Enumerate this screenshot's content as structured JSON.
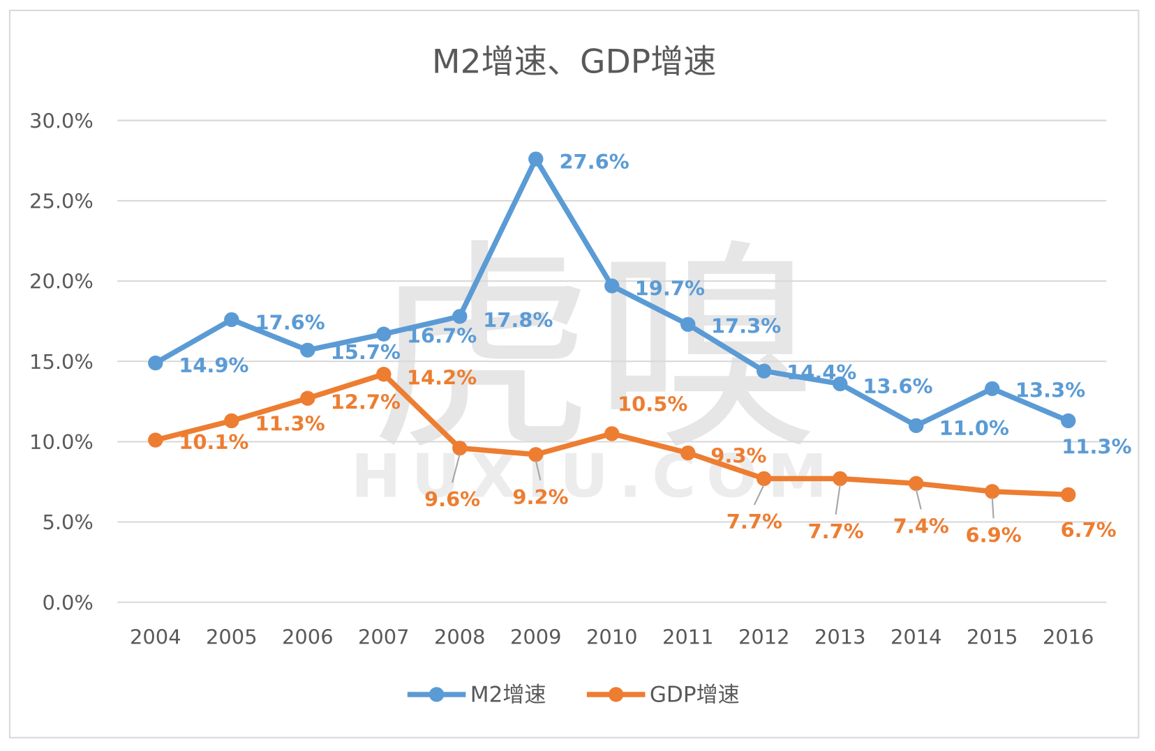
{
  "chart_data": {
    "type": "line",
    "title": "M2增速、GDP增速",
    "categories": [
      "2004",
      "2005",
      "2006",
      "2007",
      "2008",
      "2009",
      "2010",
      "2011",
      "2012",
      "2013",
      "2014",
      "2015",
      "2016"
    ],
    "ylim": [
      0,
      30
    ],
    "yticks": [
      "0.0%",
      "5.0%",
      "10.0%",
      "15.0%",
      "20.0%",
      "25.0%",
      "30.0%"
    ],
    "grid": true,
    "legend_placement": "bottom",
    "series": [
      {
        "name": "M2增速",
        "color": "#5B9BD5",
        "values": [
          14.9,
          17.6,
          15.7,
          16.7,
          17.8,
          27.6,
          19.7,
          17.3,
          14.4,
          13.6,
          11.0,
          13.3,
          11.3
        ],
        "labels": [
          "14.9%",
          "17.6%",
          "15.7%",
          "16.7%",
          "17.8%",
          "27.6%",
          "19.7%",
          "17.3%",
          "14.4%",
          "13.6%",
          "11.0%",
          "13.3%",
          "11.3%"
        ]
      },
      {
        "name": "GDP增速",
        "color": "#ED7D31",
        "values": [
          10.1,
          11.3,
          12.7,
          14.2,
          9.6,
          9.2,
          10.5,
          9.3,
          7.7,
          7.7,
          7.4,
          6.9,
          6.7
        ],
        "labels": [
          "10.1%",
          "11.3%",
          "12.7%",
          "14.2%",
          "9.6%",
          "9.2%",
          "10.5%",
          "9.3%",
          "7.7%",
          "7.7%",
          "7.4%",
          "6.9%",
          "6.7%"
        ]
      }
    ],
    "watermark": {
      "main": "虎嗅",
      "sub": "HUXIU.COM"
    }
  }
}
